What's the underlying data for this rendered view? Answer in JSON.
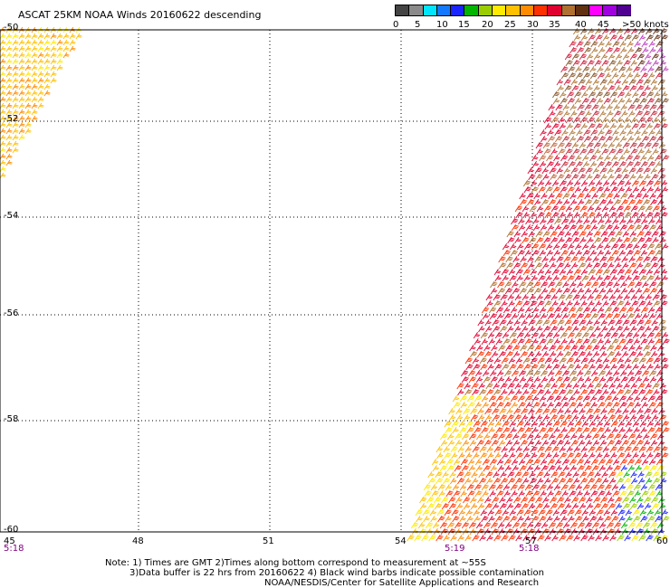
{
  "title": "ASCAT 25KM NOAA Winds 20160622 descending",
  "colorbar": {
    "colors": [
      "#444444",
      "#8a8a8a",
      "#00e5ff",
      "#1479ff",
      "#1a24ff",
      "#00b400",
      "#9acd00",
      "#ffea00",
      "#ffc000",
      "#ff8c00",
      "#ff3000",
      "#e00030",
      "#b07030",
      "#603010",
      "#ff00ff",
      "#a000e0",
      "#500090"
    ],
    "tick_labels": [
      "0",
      "5",
      "10",
      "15",
      "20",
      "25",
      "30",
      "35",
      "40",
      "45",
      ">50 knots"
    ]
  },
  "map": {
    "lat_labels": [
      "-50",
      "-52",
      "-54",
      "-56",
      "-58",
      "-60"
    ],
    "lon_labels": [
      "45",
      "48",
      "51",
      "54",
      "57",
      "60"
    ],
    "time_labels": [
      "5:18",
      "5:19",
      "5:18"
    ]
  },
  "notes": [
    "Note: 1) Times are GMT 2)Times along bottom correspond to measurement at ~55S",
    "3)Data buffer is 22 hrs from 20160622 4) Black wind barbs indicate possible contamination",
    "NOAA/NESDIS/Center for Satellite Applications and Research"
  ]
}
